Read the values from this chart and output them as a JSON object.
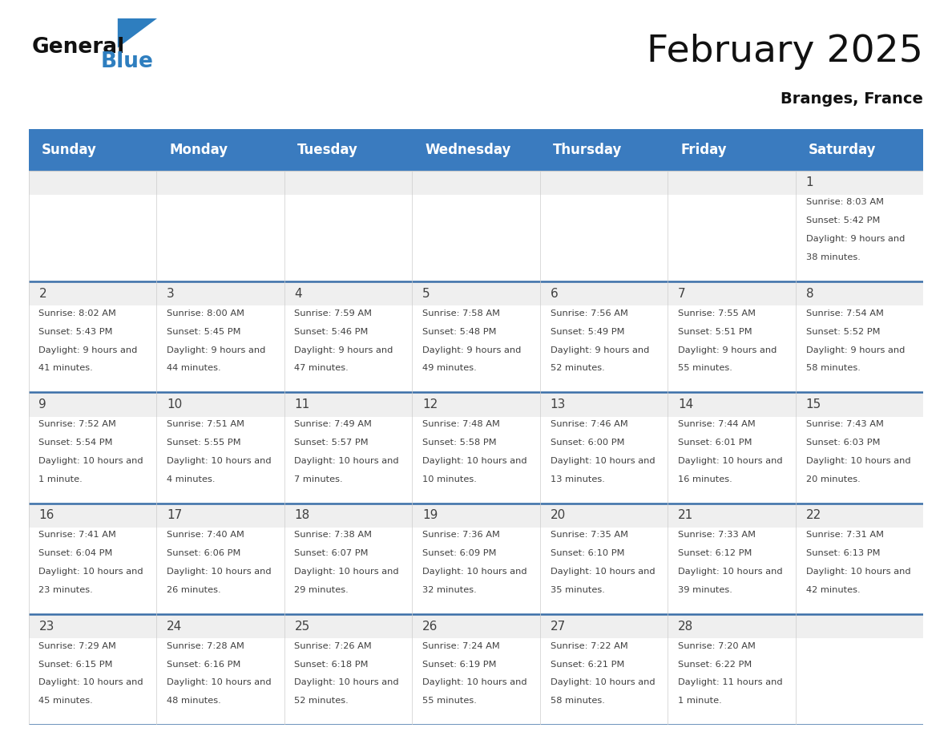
{
  "title": "February 2025",
  "subtitle": "Branges, France",
  "header_color": "#3a7bbf",
  "header_text_color": "#ffffff",
  "bg_color": "#ffffff",
  "gray_strip_color": "#efefef",
  "cell_text_color": "#404040",
  "days_of_week": [
    "Sunday",
    "Monday",
    "Tuesday",
    "Wednesday",
    "Thursday",
    "Friday",
    "Saturday"
  ],
  "calendar_data": [
    [
      null,
      null,
      null,
      null,
      null,
      null,
      {
        "day": 1,
        "sunrise": "8:03 AM",
        "sunset": "5:42 PM",
        "daylight": "9 hours and 38 minutes."
      }
    ],
    [
      {
        "day": 2,
        "sunrise": "8:02 AM",
        "sunset": "5:43 PM",
        "daylight": "9 hours and 41 minutes."
      },
      {
        "day": 3,
        "sunrise": "8:00 AM",
        "sunset": "5:45 PM",
        "daylight": "9 hours and 44 minutes."
      },
      {
        "day": 4,
        "sunrise": "7:59 AM",
        "sunset": "5:46 PM",
        "daylight": "9 hours and 47 minutes."
      },
      {
        "day": 5,
        "sunrise": "7:58 AM",
        "sunset": "5:48 PM",
        "daylight": "9 hours and 49 minutes."
      },
      {
        "day": 6,
        "sunrise": "7:56 AM",
        "sunset": "5:49 PM",
        "daylight": "9 hours and 52 minutes."
      },
      {
        "day": 7,
        "sunrise": "7:55 AM",
        "sunset": "5:51 PM",
        "daylight": "9 hours and 55 minutes."
      },
      {
        "day": 8,
        "sunrise": "7:54 AM",
        "sunset": "5:52 PM",
        "daylight": "9 hours and 58 minutes."
      }
    ],
    [
      {
        "day": 9,
        "sunrise": "7:52 AM",
        "sunset": "5:54 PM",
        "daylight": "10 hours and 1 minute."
      },
      {
        "day": 10,
        "sunrise": "7:51 AM",
        "sunset": "5:55 PM",
        "daylight": "10 hours and 4 minutes."
      },
      {
        "day": 11,
        "sunrise": "7:49 AM",
        "sunset": "5:57 PM",
        "daylight": "10 hours and 7 minutes."
      },
      {
        "day": 12,
        "sunrise": "7:48 AM",
        "sunset": "5:58 PM",
        "daylight": "10 hours and 10 minutes."
      },
      {
        "day": 13,
        "sunrise": "7:46 AM",
        "sunset": "6:00 PM",
        "daylight": "10 hours and 13 minutes."
      },
      {
        "day": 14,
        "sunrise": "7:44 AM",
        "sunset": "6:01 PM",
        "daylight": "10 hours and 16 minutes."
      },
      {
        "day": 15,
        "sunrise": "7:43 AM",
        "sunset": "6:03 PM",
        "daylight": "10 hours and 20 minutes."
      }
    ],
    [
      {
        "day": 16,
        "sunrise": "7:41 AM",
        "sunset": "6:04 PM",
        "daylight": "10 hours and 23 minutes."
      },
      {
        "day": 17,
        "sunrise": "7:40 AM",
        "sunset": "6:06 PM",
        "daylight": "10 hours and 26 minutes."
      },
      {
        "day": 18,
        "sunrise": "7:38 AM",
        "sunset": "6:07 PM",
        "daylight": "10 hours and 29 minutes."
      },
      {
        "day": 19,
        "sunrise": "7:36 AM",
        "sunset": "6:09 PM",
        "daylight": "10 hours and 32 minutes."
      },
      {
        "day": 20,
        "sunrise": "7:35 AM",
        "sunset": "6:10 PM",
        "daylight": "10 hours and 35 minutes."
      },
      {
        "day": 21,
        "sunrise": "7:33 AM",
        "sunset": "6:12 PM",
        "daylight": "10 hours and 39 minutes."
      },
      {
        "day": 22,
        "sunrise": "7:31 AM",
        "sunset": "6:13 PM",
        "daylight": "10 hours and 42 minutes."
      }
    ],
    [
      {
        "day": 23,
        "sunrise": "7:29 AM",
        "sunset": "6:15 PM",
        "daylight": "10 hours and 45 minutes."
      },
      {
        "day": 24,
        "sunrise": "7:28 AM",
        "sunset": "6:16 PM",
        "daylight": "10 hours and 48 minutes."
      },
      {
        "day": 25,
        "sunrise": "7:26 AM",
        "sunset": "6:18 PM",
        "daylight": "10 hours and 52 minutes."
      },
      {
        "day": 26,
        "sunrise": "7:24 AM",
        "sunset": "6:19 PM",
        "daylight": "10 hours and 55 minutes."
      },
      {
        "day": 27,
        "sunrise": "7:22 AM",
        "sunset": "6:21 PM",
        "daylight": "10 hours and 58 minutes."
      },
      {
        "day": 28,
        "sunrise": "7:20 AM",
        "sunset": "6:22 PM",
        "daylight": "11 hours and 1 minute."
      },
      null
    ]
  ],
  "logo_blue_color": "#2e7ebf",
  "title_fontsize": 34,
  "subtitle_fontsize": 14,
  "header_fontsize": 12,
  "day_num_fontsize": 11,
  "cell_info_fontsize": 8.2,
  "separator_color": "#3a6ea8",
  "line_color": "#cccccc"
}
